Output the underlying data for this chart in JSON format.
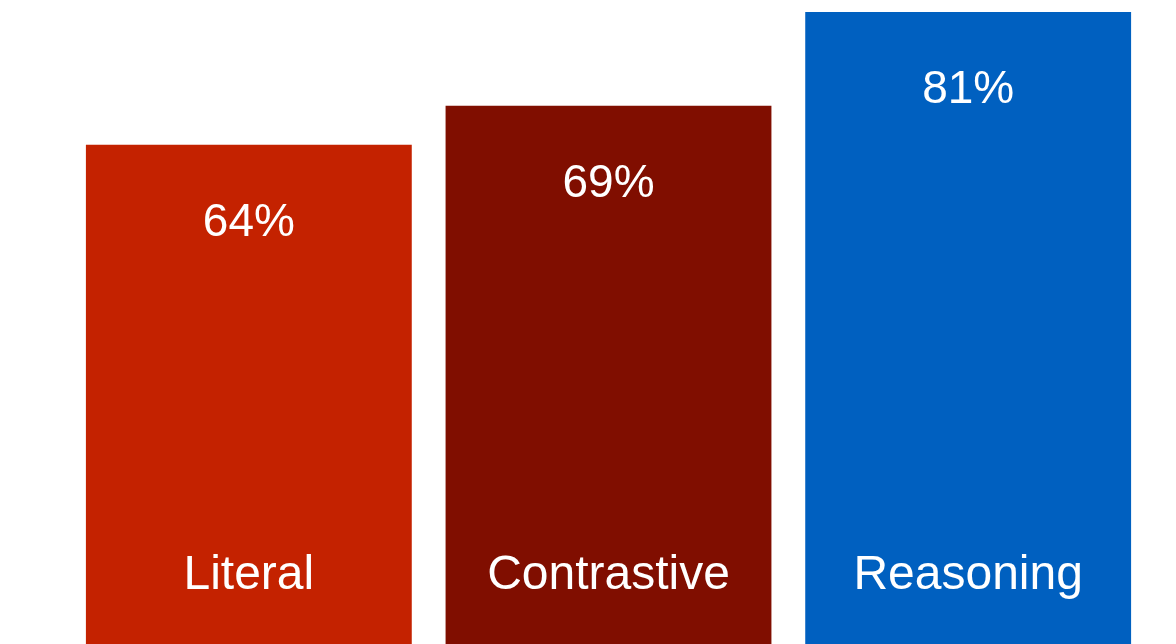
{
  "chart_data": {
    "type": "bar",
    "categories": [
      "Literal",
      "Contrastive",
      "Reasoning"
    ],
    "values": [
      64,
      69,
      81
    ],
    "colors": [
      "#c42200",
      "#800e00",
      "#0060c0"
    ],
    "value_labels": [
      "64%",
      "69%",
      "81%"
    ]
  }
}
